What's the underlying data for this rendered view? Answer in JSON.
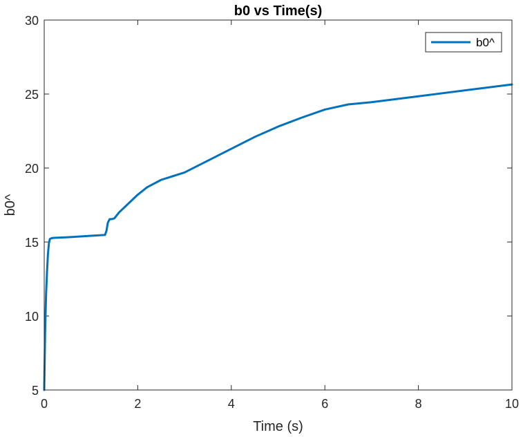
{
  "chart_data": {
    "type": "line",
    "title": "b0 vs Time(s)",
    "xlabel": "Time (s)",
    "ylabel": "b0^",
    "xlim": [
      0,
      10
    ],
    "ylim": [
      5,
      30
    ],
    "xticks": [
      0,
      2,
      4,
      6,
      8,
      10
    ],
    "yticks": [
      5,
      10,
      15,
      20,
      25,
      30
    ],
    "grid": false,
    "legend_position": "top-right",
    "series": [
      {
        "name": "b0^",
        "color": "#0072BD",
        "x": [
          0,
          0.02,
          0.04,
          0.06,
          0.08,
          0.1,
          0.12,
          0.15,
          0.2,
          0.5,
          1.0,
          1.3,
          1.33,
          1.36,
          1.4,
          1.45,
          1.5,
          1.6,
          1.8,
          2.0,
          2.2,
          2.5,
          3.0,
          3.5,
          4.0,
          4.5,
          5.0,
          5.5,
          6.0,
          6.5,
          7.0,
          8.0,
          9.0,
          10.0
        ],
        "y": [
          5.0,
          9.0,
          11.5,
          13.0,
          14.2,
          14.9,
          15.2,
          15.25,
          15.28,
          15.32,
          15.42,
          15.48,
          15.75,
          16.3,
          16.55,
          16.55,
          16.6,
          17.0,
          17.6,
          18.2,
          18.7,
          19.2,
          19.7,
          20.5,
          21.3,
          22.1,
          22.8,
          23.4,
          23.95,
          24.3,
          24.45,
          24.85,
          25.25,
          25.65
        ]
      }
    ]
  }
}
